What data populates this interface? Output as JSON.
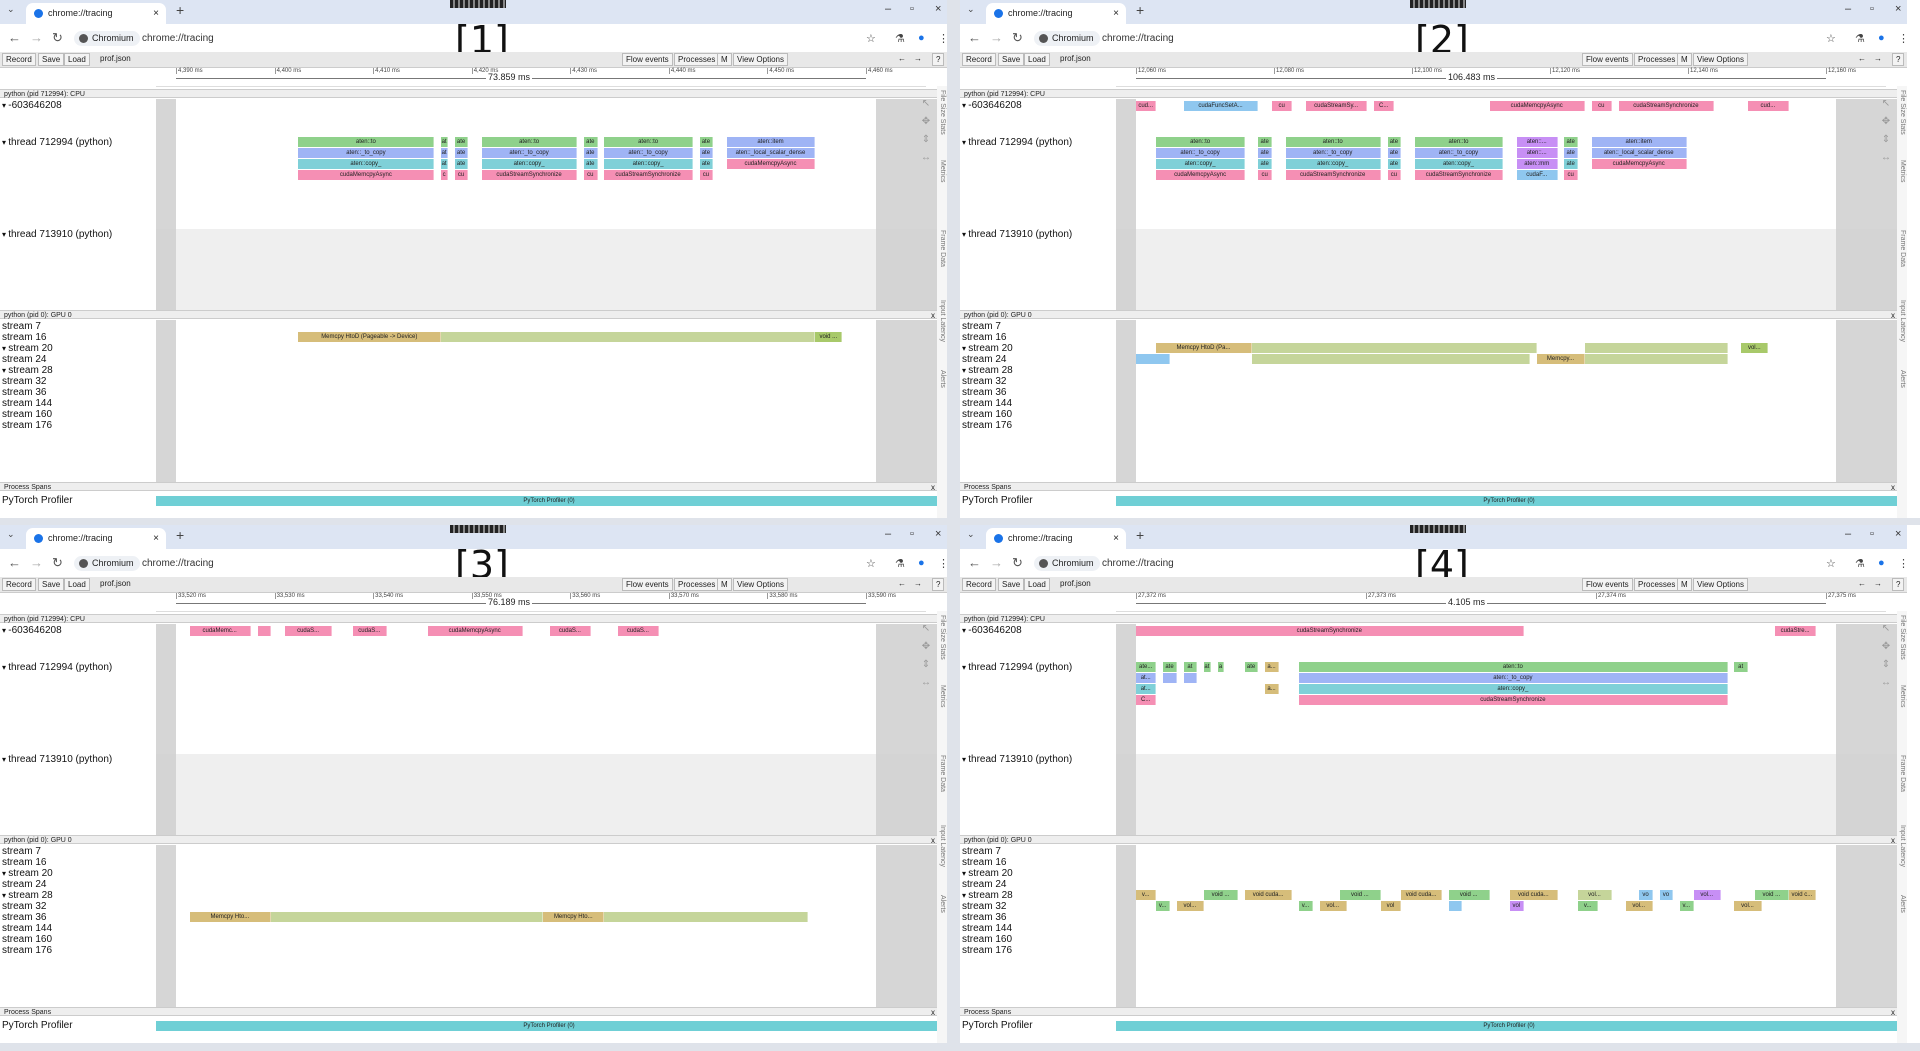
{
  "browser": {
    "tab_title": "chrome://tracing",
    "site_chip": "Chromium",
    "url": "chrome://tracing"
  },
  "toolbar": {
    "record": "Record",
    "save": "Save",
    "load": "Load",
    "file": "prof.json",
    "flow_events": "Flow events",
    "processes": "Processes",
    "m": "M",
    "view_options": "View Options",
    "help": "?"
  },
  "rows": {
    "cpu_process": "python (pid 712994): CPU",
    "tid_main": "-603646208",
    "thread_a": "thread 712994 (python)",
    "thread_b": "thread 713910 (python)",
    "gpu_process": "python (pid 0): GPU 0",
    "streams": [
      "stream 7",
      "stream 16",
      "stream 20",
      "stream 24",
      "stream 28",
      "stream 32",
      "stream 36",
      "stream 144",
      "stream 160",
      "stream 176"
    ],
    "process_spans": "Process Spans",
    "profiler": "PyTorch Profiler",
    "profiler_bar": "PyTorch Profiler (0)",
    "close": "x"
  },
  "side_tabs": [
    "File Size Stats",
    "Metrics",
    "Frame Data",
    "Input Latency",
    "Alerts"
  ],
  "panels": [
    {
      "label": "[1]",
      "span": "73.859 ms",
      "ticks": [
        "4,390 ms",
        "4,400 ms",
        "4,410 ms",
        "4,420 ms",
        "4,430 ms",
        "4,440 ms",
        "4,450 ms",
        "4,460 ms"
      ],
      "main_row": [],
      "thread_rows": [
        [
          [
            "aten::to",
            "#8fd18b",
            18,
            20
          ],
          [
            "at",
            "#8fd18b",
            39,
            1
          ],
          [
            "ate",
            "#8fd18b",
            41,
            2
          ],
          [
            "aten::to",
            "#8fd18b",
            45,
            14
          ],
          [
            "ate",
            "#8fd18b",
            60,
            2
          ],
          [
            "aten::to",
            "#8fd18b",
            63,
            13
          ],
          [
            "ate",
            "#8fd18b",
            77,
            2
          ],
          [
            "aten::item",
            "#9fb4f5",
            81,
            13
          ]
        ],
        [
          [
            "aten::_to_copy",
            "#9fb4f5",
            18,
            20
          ],
          [
            "at",
            "#9fb4f5",
            39,
            1
          ],
          [
            "ate",
            "#9fb4f5",
            41,
            2
          ],
          [
            "aten::_to_copy",
            "#9fb4f5",
            45,
            14
          ],
          [
            "ate",
            "#9fb4f5",
            60,
            2
          ],
          [
            "aten::_to_copy",
            "#9fb4f5",
            63,
            13
          ],
          [
            "ate",
            "#9fb4f5",
            77,
            2
          ],
          [
            "aten::_local_scalar_dense",
            "#9fb4f5",
            81,
            13
          ]
        ],
        [
          [
            "aten::copy_",
            "#7fd0d8",
            18,
            20
          ],
          [
            "at",
            "#7fd0d8",
            39,
            1
          ],
          [
            "ate",
            "#7fd0d8",
            41,
            2
          ],
          [
            "aten::copy_",
            "#7fd0d8",
            45,
            14
          ],
          [
            "ate",
            "#7fd0d8",
            60,
            2
          ],
          [
            "aten::copy_",
            "#7fd0d8",
            63,
            13
          ],
          [
            "ate",
            "#7fd0d8",
            77,
            2
          ],
          [
            "cudaMemcpyAsync",
            "#f58fb4",
            81,
            13
          ]
        ],
        [
          [
            "cudaMemcpyAsync",
            "#f58fb4",
            18,
            20
          ],
          [
            "c",
            "#f58fb4",
            39,
            1
          ],
          [
            "cu",
            "#f58fb4",
            41,
            2
          ],
          [
            "cudaStreamSynchronize",
            "#f58fb4",
            45,
            14
          ],
          [
            "cu",
            "#f58fb4",
            60,
            2
          ],
          [
            "cudaStreamSynchronize",
            "#f58fb4",
            63,
            13
          ],
          [
            "cu",
            "#f58fb4",
            77,
            2
          ]
        ]
      ],
      "stream_bars": [
        {
          "row": 1,
          "bars": [
            [
              "Memcpy HtoD (Pageable -> Device)",
              "#d6bd7a",
              18,
              21
            ],
            [
              "",
              "#c5d59a",
              39,
              55
            ],
            [
              "void ...",
              "#a8c96a",
              94,
              4
            ]
          ]
        }
      ]
    },
    {
      "label": "[2]",
      "span": "106.483 ms",
      "ticks": [
        "12,060 ms",
        "12,080 ms",
        "12,100 ms",
        "12,120 ms",
        "12,140 ms",
        "12,160 ms"
      ],
      "main_row": [
        [
          "cud...",
          "#f58fb4",
          0,
          3
        ],
        [
          "cudaFuncSetA...",
          "#8fc7ef",
          7,
          11
        ],
        [
          "cu",
          "#f58fb4",
          20,
          3
        ],
        [
          "cudaStreamSy...",
          "#f58fb4",
          25,
          9
        ],
        [
          "C...",
          "#f58fb4",
          35,
          3
        ],
        [
          "cudaMemcpyAsync",
          "#f58fb4",
          52,
          14
        ],
        [
          "cu",
          "#f58fb4",
          67,
          3
        ],
        [
          "cudaStreamSynchronize",
          "#f58fb4",
          71,
          14
        ],
        [
          "cud...",
          "#f58fb4",
          90,
          6
        ]
      ],
      "thread_rows": [
        [
          [
            "aten::to",
            "#8fd18b",
            3,
            13
          ],
          [
            "ate",
            "#8fd18b",
            18,
            2
          ],
          [
            "aten::to",
            "#8fd18b",
            22,
            14
          ],
          [
            "ate",
            "#8fd18b",
            37,
            2
          ],
          [
            "aten::to",
            "#8fd18b",
            41,
            13
          ],
          [
            "aten::...",
            "#c78ff5",
            56,
            6
          ],
          [
            "ate",
            "#8fd18b",
            63,
            2
          ],
          [
            "aten::item",
            "#9fb4f5",
            67,
            14
          ]
        ],
        [
          [
            "aten::_to_copy",
            "#9fb4f5",
            3,
            13
          ],
          [
            "ate",
            "#9fb4f5",
            18,
            2
          ],
          [
            "aten::_to_copy",
            "#9fb4f5",
            22,
            14
          ],
          [
            "ate",
            "#9fb4f5",
            37,
            2
          ],
          [
            "aten::_to_copy",
            "#9fb4f5",
            41,
            13
          ],
          [
            "aten::...",
            "#c78ff5",
            56,
            6
          ],
          [
            "ate",
            "#9fb4f5",
            63,
            2
          ],
          [
            "aten::_local_scalar_dense",
            "#9fb4f5",
            67,
            14
          ]
        ],
        [
          [
            "aten::copy_",
            "#7fd0d8",
            3,
            13
          ],
          [
            "ate",
            "#7fd0d8",
            18,
            2
          ],
          [
            "aten::copy_",
            "#7fd0d8",
            22,
            14
          ],
          [
            "ate",
            "#7fd0d8",
            37,
            2
          ],
          [
            "aten::copy_",
            "#7fd0d8",
            41,
            13
          ],
          [
            "aten::mm",
            "#c78ff5",
            56,
            6
          ],
          [
            "ate",
            "#7fd0d8",
            63,
            2
          ],
          [
            "cudaMemcpyAsync",
            "#f58fb4",
            67,
            14
          ]
        ],
        [
          [
            "cudaMemcpyAsync",
            "#f58fb4",
            3,
            13
          ],
          [
            "cu",
            "#f58fb4",
            18,
            2
          ],
          [
            "cudaStreamSynchronize",
            "#f58fb4",
            22,
            14
          ],
          [
            "cu",
            "#f58fb4",
            37,
            2
          ],
          [
            "cudaStreamSynchronize",
            "#f58fb4",
            41,
            13
          ],
          [
            "cudaF...",
            "#8fc7ef",
            56,
            6
          ],
          [
            "cu",
            "#f58fb4",
            63,
            2
          ]
        ]
      ],
      "stream_bars": [
        {
          "row": 2,
          "bars": [
            [
              "Memcpy HtoD (Pa...",
              "#d6bd7a",
              3,
              14
            ],
            [
              "",
              "#c5d59a",
              17,
              42
            ],
            [
              "",
              "#c5d59a",
              66,
              21
            ],
            [
              "vol...",
              "#a8c96a",
              89,
              4
            ]
          ]
        },
        {
          "row": 3,
          "bars": [
            [
              "",
              "#8fc7ef",
              0,
              5
            ],
            [
              "",
              "#c5d59a",
              17,
              41
            ],
            [
              "Memcpy...",
              "#d6bd7a",
              59,
              7
            ],
            [
              "",
              "#c5d59a",
              66,
              21
            ]
          ]
        }
      ]
    },
    {
      "label": "[3]",
      "span": "76.189 ms",
      "ticks": [
        "33,520 ms",
        "33,530 ms",
        "33,540 ms",
        "33,550 ms",
        "33,560 ms",
        "33,570 ms",
        "33,580 ms",
        "33,590 ms"
      ],
      "main_row": [
        [
          "cudaMemc...",
          "#f58fb4",
          2,
          9
        ],
        [
          "",
          "#f58fb4",
          12,
          2
        ],
        [
          "cudaS...",
          "#f58fb4",
          16,
          7
        ],
        [
          "cudaS...",
          "#f58fb4",
          26,
          5
        ],
        [
          "cudaMemcpyAsync",
          "#f58fb4",
          37,
          14
        ],
        [
          "cudaS...",
          "#f58fb4",
          55,
          6
        ],
        [
          "cudaS...",
          "#f58fb4",
          65,
          6
        ]
      ],
      "thread_rows": [],
      "stream_bars": [
        {
          "row": 6,
          "bars": [
            [
              "Memcpy Hto...",
              "#d6bd7a",
              2,
              12
            ],
            [
              "",
              "#c5d59a",
              14,
              40
            ],
            [
              "Memcpy Hto...",
              "#d6bd7a",
              54,
              9
            ],
            [
              "",
              "#c5d59a",
              63,
              30
            ]
          ]
        }
      ]
    },
    {
      "label": "[4]",
      "span": "4.105 ms",
      "ticks": [
        "27,372 ms",
        "27,373 ms",
        "27,374 ms",
        "27,375 ms"
      ],
      "main_row": [
        [
          "cudaStreamSynchronize",
          "#f58fb4",
          0,
          57
        ],
        [
          "cudaStre...",
          "#f58fb4",
          94,
          6
        ]
      ],
      "thread_rows": [
        [
          [
            "ate...",
            "#8fd18b",
            0,
            3
          ],
          [
            "ate",
            "#8fd18b",
            4,
            2
          ],
          [
            "at",
            "#8fd18b",
            7,
            2
          ],
          [
            "at",
            "#8fd18b",
            10,
            1
          ],
          [
            "a",
            "#8fd18b",
            12,
            1
          ],
          [
            "ate",
            "#8fd18b",
            16,
            2
          ],
          [
            "a...",
            "#d6bd7a",
            19,
            2
          ],
          [
            "aten::to",
            "#8fd18b",
            24,
            63
          ],
          [
            "at",
            "#8fd18b",
            88,
            2
          ]
        ],
        [
          [
            "at...",
            "#9fb4f5",
            0,
            3
          ],
          [
            "",
            "#9fb4f5",
            4,
            2
          ],
          [
            "",
            "#9fb4f5",
            7,
            2
          ],
          [
            "aten::_to_copy",
            "#9fb4f5",
            24,
            63
          ]
        ],
        [
          [
            "at...",
            "#7fd0d8",
            0,
            3
          ],
          [
            "a...",
            "#d6bd7a",
            19,
            2
          ],
          [
            "aten::copy_",
            "#7fd0d8",
            24,
            63
          ]
        ],
        [
          [
            "C...",
            "#f58fb4",
            0,
            3
          ],
          [
            "cudaStreamSynchronize",
            "#f58fb4",
            24,
            63
          ]
        ]
      ],
      "stream_bars": [
        {
          "row": 4,
          "bars": [
            [
              "v...",
              "#d6bd7a",
              0,
              3
            ],
            [
              "void ...",
              "#8fd18b",
              10,
              5
            ],
            [
              "void cuda...",
              "#d6bd7a",
              16,
              7
            ],
            [
              "void ...",
              "#8fd18b",
              30,
              6
            ],
            [
              "void cuda...",
              "#d6bd7a",
              39,
              6
            ],
            [
              "void ...",
              "#8fd18b",
              46,
              6
            ],
            [
              "void cuda...",
              "#d6bd7a",
              55,
              7
            ],
            [
              "vol...",
              "#c5d59a",
              65,
              5
            ],
            [
              "vo",
              "#8fc7ef",
              74,
              2
            ],
            [
              "vo",
              "#8fc7ef",
              77,
              2
            ],
            [
              "vol...",
              "#c78ff5",
              82,
              4
            ],
            [
              "void ...",
              "#8fd18b",
              91,
              5
            ],
            [
              "void c...",
              "#d6bd7a",
              96,
              4
            ]
          ]
        },
        {
          "row": 5,
          "bars": [
            [
              "v...",
              "#8fd18b",
              3,
              2
            ],
            [
              "vol...",
              "#d6bd7a",
              6,
              4
            ],
            [
              "v...",
              "#8fd18b",
              24,
              2
            ],
            [
              "vol...",
              "#d6bd7a",
              27,
              4
            ],
            [
              "vol",
              "#d6bd7a",
              36,
              3
            ],
            [
              "",
              "#8fc7ef",
              46,
              2
            ],
            [
              "vol",
              "#c78ff5",
              55,
              2
            ],
            [
              "v...",
              "#8fd18b",
              65,
              3
            ],
            [
              "vol...",
              "#d6bd7a",
              72,
              4
            ],
            [
              "v...",
              "#8fd18b",
              80,
              2
            ],
            [
              "vol...",
              "#d6bd7a",
              88,
              4
            ]
          ]
        }
      ]
    }
  ]
}
